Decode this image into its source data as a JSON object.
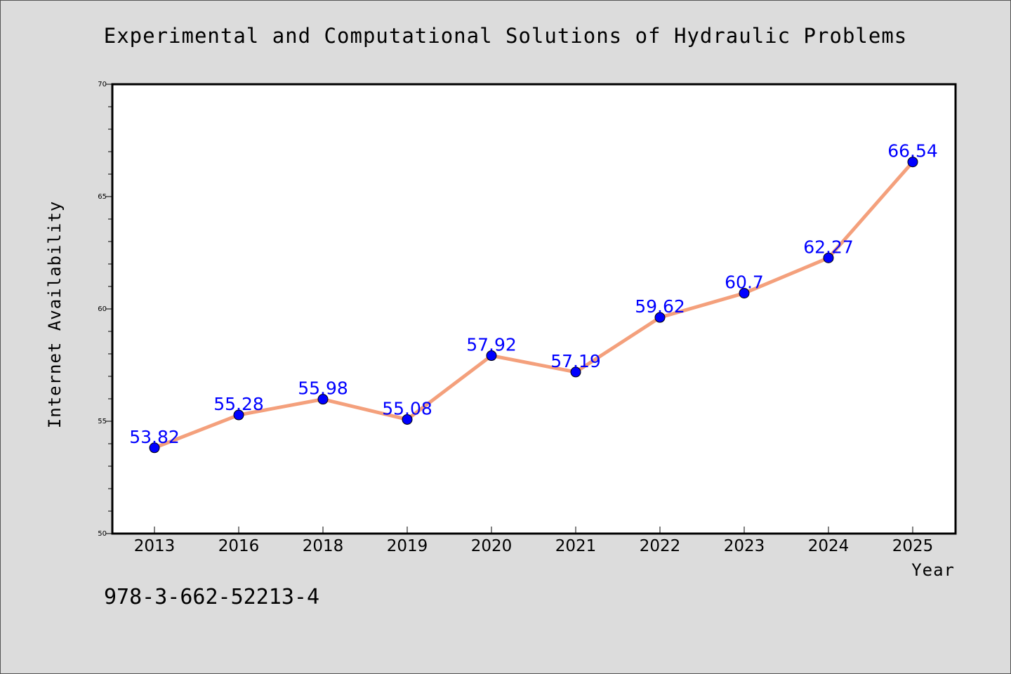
{
  "chart_data": {
    "type": "line",
    "title": "Experimental and Computational Solutions of Hydraulic Problems",
    "xlabel": "Year",
    "ylabel": "Internet Availability",
    "categories": [
      "2013",
      "2016",
      "2018",
      "2019",
      "2020",
      "2021",
      "2022",
      "2023",
      "2024",
      "2025"
    ],
    "series": [
      {
        "values": [
          53.82,
          55.28,
          55.98,
          55.08,
          57.92,
          57.19,
          59.62,
          60.7,
          62.27,
          66.54
        ],
        "data_labels": [
          "53.82",
          "55.28",
          "55.98",
          "55.08",
          "57.92",
          "57.19",
          "59.62",
          "60.7",
          "62.27",
          "66.54"
        ],
        "line_color": "#f4a07c",
        "marker_color": "#0000ff"
      }
    ],
    "ylim": [
      50,
      70
    ],
    "yticks": [
      50,
      55,
      60,
      65,
      70
    ],
    "grid": false,
    "legend": "none"
  },
  "footer": {
    "isbn": "978-3-662-52213-4"
  },
  "colors": {
    "background": "#dcdcdc",
    "plot_background": "#ffffff",
    "line": "#f4a07c",
    "marker": "#0000ff",
    "data_label": "#0000ff"
  }
}
